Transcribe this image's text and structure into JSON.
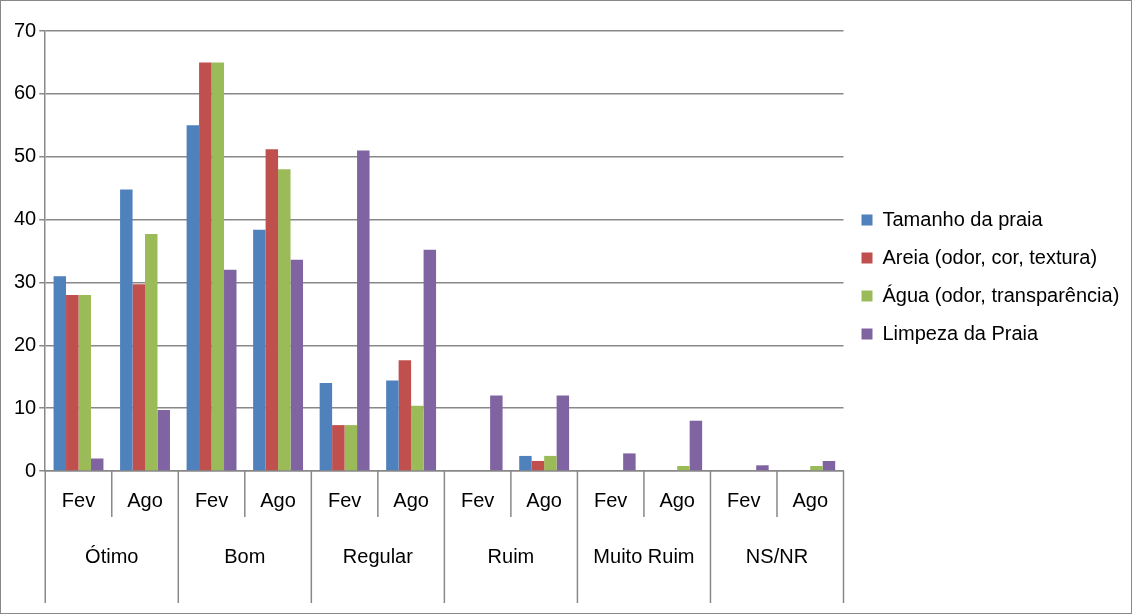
{
  "chart_data": {
    "type": "bar",
    "categories": [
      "Fev",
      "Ago",
      "Fev",
      "Ago",
      "Fev",
      "Ago",
      "Fev",
      "Ago",
      "Fev",
      "Ago",
      "Fev",
      "Ago"
    ],
    "annotations": [
      "Ótimo",
      "Bom",
      "Regular",
      "Ruim",
      "Muito Ruim",
      "NS/NR"
    ],
    "series": [
      {
        "name": "Tamanho da praia",
        "color": "#4f81bd",
        "values": [
          31,
          44.8,
          55,
          38.4,
          14,
          14.4,
          0,
          2.4,
          0,
          0,
          0,
          0
        ]
      },
      {
        "name": "Areia (odor, cor, textura)",
        "color": "#c0504d",
        "values": [
          28,
          29.7,
          65,
          51.2,
          7.3,
          17.6,
          0,
          1.6,
          0,
          0,
          0,
          0
        ]
      },
      {
        "name": "Água (odor, transparência)",
        "color": "#9bbb59",
        "values": [
          28,
          37.7,
          65,
          48,
          7.3,
          10.4,
          0,
          2.4,
          0,
          0.8,
          0,
          0.8
        ]
      },
      {
        "name": "Limpeza da Praia",
        "color": "#8064a2",
        "values": [
          2,
          9.7,
          32,
          33.6,
          51,
          35.2,
          12,
          12,
          2.8,
          8,
          0.9,
          1.6
        ]
      }
    ],
    "ylim": [
      0,
      70
    ],
    "yticks": [
      0,
      10,
      20,
      30,
      40,
      50,
      60,
      70
    ],
    "grid": "y",
    "legend": "right"
  }
}
